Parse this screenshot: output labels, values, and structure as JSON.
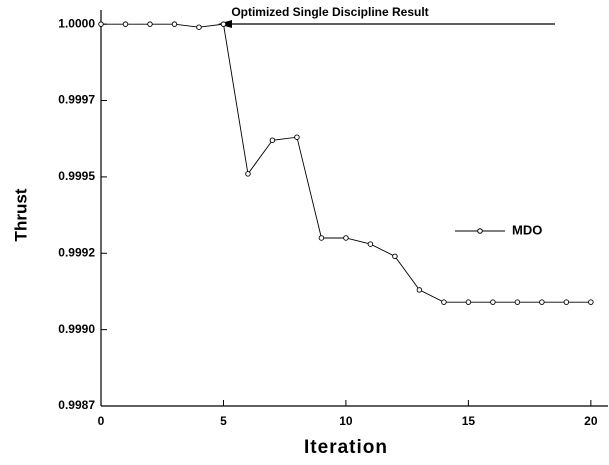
{
  "chart_data": {
    "type": "line",
    "xlabel": "Iteration",
    "ylabel": "Thrust",
    "annotation": "Optimized Single Discipline Result",
    "x": [
      0,
      1,
      2,
      3,
      4,
      5,
      6,
      7,
      8,
      9,
      10,
      11,
      12,
      13,
      14,
      15,
      16,
      17,
      18,
      19,
      20
    ],
    "series": [
      {
        "name": "MDO",
        "color": "#000000",
        "values": [
          1.0,
          1.0,
          1.0,
          1.0,
          0.99999,
          1.0,
          0.99951,
          0.99962,
          0.99963,
          0.9993,
          0.9993,
          0.99928,
          0.99924,
          0.99913,
          0.99909,
          0.99909,
          0.99909,
          0.99909,
          0.99909,
          0.99909,
          0.99909
        ]
      }
    ],
    "xlim": [
      0,
      20.7
    ],
    "xticks": [
      0,
      5,
      10,
      15,
      20
    ],
    "ylim": [
      0.99875,
      1.00003
    ],
    "yticks": [
      {
        "value": 0.99875,
        "label": "0.9987"
      },
      {
        "value": 0.999,
        "label": "0.9990"
      },
      {
        "value": 0.99925,
        "label": "0.9992"
      },
      {
        "value": 0.9995,
        "label": "0.9995"
      },
      {
        "value": 0.99975,
        "label": "0.9997"
      },
      {
        "value": 1.0,
        "label": "1.0000"
      }
    ],
    "legend": "right"
  }
}
